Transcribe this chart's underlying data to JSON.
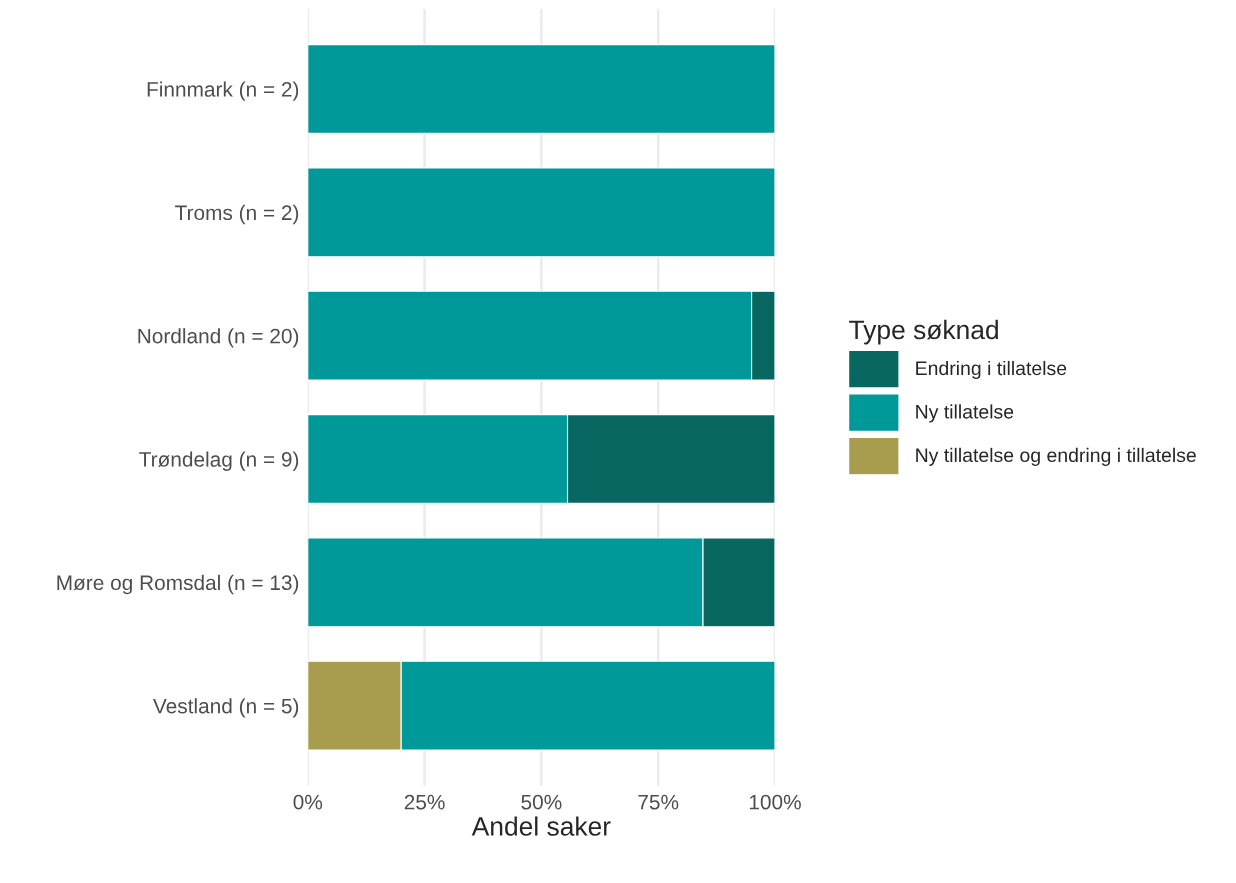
{
  "chart_data": {
    "type": "bar",
    "orientation": "horizontal",
    "stacked": true,
    "categories": [
      "Finnmark (n = 2)",
      "Troms (n = 2)",
      "Nordland (n = 20)",
      "Trøndelag (n = 9)",
      "Møre og Romsdal (n = 13)",
      "Vestland (n = 5)"
    ],
    "series": [
      {
        "name": "Ny tillatelse og endring i tillatelse",
        "color": "#a89c4e",
        "values": [
          null,
          null,
          null,
          null,
          null,
          20
        ]
      },
      {
        "name": "Ny tillatelse",
        "color": "#00999a",
        "values": [
          100,
          100,
          95,
          55.6,
          84.6,
          80
        ]
      },
      {
        "name": "Endring i tillatelse",
        "color": "#086760",
        "values": [
          null,
          null,
          5,
          44.4,
          15.4,
          null
        ]
      }
    ],
    "xlabel": "Andel saker",
    "legend_title": "Type søknad",
    "xlim": [
      0,
      100
    ],
    "xticks": [
      {
        "value": 0,
        "label": "0%"
      },
      {
        "value": 25,
        "label": "25%"
      },
      {
        "value": 50,
        "label": "50%"
      },
      {
        "value": 75,
        "label": "75%"
      },
      {
        "value": 100,
        "label": "100%"
      }
    ],
    "grid": "x",
    "legend": "right"
  }
}
